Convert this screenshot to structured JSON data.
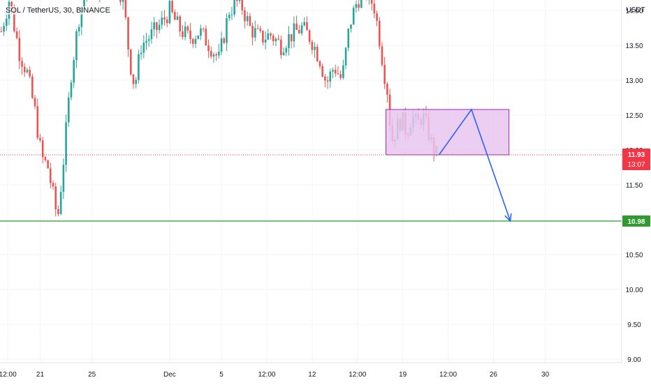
{
  "chart_data": {
    "type": "candlestick",
    "symbol_title": "SOL / TetherUS, 30, BINANCE",
    "currency_label": "USDT",
    "ylim": [
      8.9,
      14.3
    ],
    "y_ticks": [
      "14.00",
      "13.50",
      "13.00",
      "12.50",
      "12.00",
      "11.50",
      "11.00",
      "10.50",
      "10.00",
      "9.50",
      "9.00"
    ],
    "y_tick_values": [
      14.0,
      13.5,
      13.0,
      12.5,
      12.0,
      11.5,
      11.0,
      10.5,
      10.0,
      9.5,
      9.0
    ],
    "x_ticks": [
      "12:00",
      "21",
      "25",
      "Dec",
      "5",
      "12:00",
      "12",
      "12:00",
      "19",
      "12:00",
      "26",
      "30"
    ],
    "x_tick_days": [
      -2.5,
      0,
      4,
      10,
      14,
      17.5,
      21,
      24.5,
      28,
      31.5,
      35,
      39
    ],
    "x_day_range": [
      -3.1,
      44.9
    ],
    "price_path": [
      {
        "t": -3.0,
        "p": 13.7
      },
      {
        "t": -2.4,
        "p": 14.15
      },
      {
        "t": -1.6,
        "p": 13.4
      },
      {
        "t": -1.0,
        "p": 13.1
      },
      {
        "t": -0.4,
        "p": 12.55
      },
      {
        "t": 0.1,
        "p": 11.9
      },
      {
        "t": 0.6,
        "p": 11.75
      },
      {
        "t": 1.0,
        "p": 11.35
      },
      {
        "t": 1.35,
        "p": 11.0
      },
      {
        "t": 1.8,
        "p": 11.85
      },
      {
        "t": 2.4,
        "p": 13.1
      },
      {
        "t": 3.0,
        "p": 13.9
      },
      {
        "t": 3.6,
        "p": 14.4
      },
      {
        "t": 4.6,
        "p": 14.3
      },
      {
        "t": 5.6,
        "p": 14.45
      },
      {
        "t": 6.4,
        "p": 14.2
      },
      {
        "t": 6.9,
        "p": 13.3
      },
      {
        "t": 7.3,
        "p": 12.9
      },
      {
        "t": 7.8,
        "p": 13.5
      },
      {
        "t": 8.6,
        "p": 13.65
      },
      {
        "t": 9.3,
        "p": 13.8
      },
      {
        "t": 10.0,
        "p": 14.0
      },
      {
        "t": 10.7,
        "p": 13.75
      },
      {
        "t": 11.5,
        "p": 13.6
      },
      {
        "t": 12.3,
        "p": 13.7
      },
      {
        "t": 13.1,
        "p": 13.5
      },
      {
        "t": 13.8,
        "p": 13.3
      },
      {
        "t": 14.6,
        "p": 14.0
      },
      {
        "t": 15.4,
        "p": 14.15
      },
      {
        "t": 16.2,
        "p": 13.75
      },
      {
        "t": 17.0,
        "p": 13.6
      },
      {
        "t": 17.8,
        "p": 13.65
      },
      {
        "t": 18.6,
        "p": 13.5
      },
      {
        "t": 19.4,
        "p": 13.65
      },
      {
        "t": 20.2,
        "p": 13.75
      },
      {
        "t": 20.9,
        "p": 13.6
      },
      {
        "t": 21.6,
        "p": 13.3
      },
      {
        "t": 22.1,
        "p": 12.95
      },
      {
        "t": 22.7,
        "p": 13.2
      },
      {
        "t": 23.3,
        "p": 13.0
      },
      {
        "t": 23.9,
        "p": 13.8
      },
      {
        "t": 24.5,
        "p": 14.15
      },
      {
        "t": 25.1,
        "p": 14.3
      },
      {
        "t": 25.8,
        "p": 14.05
      },
      {
        "t": 26.2,
        "p": 13.6
      },
      {
        "t": 26.5,
        "p": 13.2
      },
      {
        "t": 26.9,
        "p": 12.75
      },
      {
        "t": 27.1,
        "p": 12.1
      },
      {
        "t": 27.5,
        "p": 12.3
      },
      {
        "t": 27.9,
        "p": 12.45
      },
      {
        "t": 28.3,
        "p": 12.25
      },
      {
        "t": 28.7,
        "p": 12.5
      },
      {
        "t": 29.1,
        "p": 12.35
      },
      {
        "t": 29.5,
        "p": 12.5
      },
      {
        "t": 29.9,
        "p": 12.3
      },
      {
        "t": 30.2,
        "p": 12.1
      },
      {
        "t": 30.6,
        "p": 11.93
      }
    ],
    "current_price": {
      "value": 11.93,
      "label": "11.93",
      "countdown": "13:07",
      "color": "#f23645"
    },
    "support_line": {
      "value": 10.98,
      "label": "10.98",
      "color": "#2e9b2e"
    },
    "range_box": {
      "t_start": 26.7,
      "t_end": 36.2,
      "p_low": 11.93,
      "p_high": 12.58,
      "fill": "#e7c6ee",
      "stroke": "#9b27b0"
    },
    "projection_path": [
      {
        "t": 30.8,
        "p": 11.93
      },
      {
        "t": 33.3,
        "p": 12.58
      },
      {
        "t": 36.3,
        "p": 10.98
      }
    ],
    "projection_color": "#2962ff",
    "colors": {
      "up": "#26a69a",
      "down": "#ef5350",
      "grid": "#f0f3fa",
      "axis_text": "#131722"
    },
    "grid": true
  }
}
